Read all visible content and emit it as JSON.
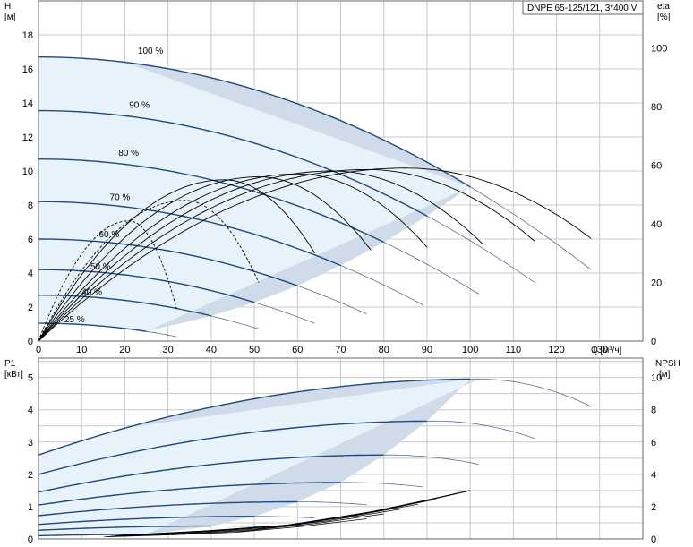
{
  "title": "DNPE 65-125/121, 3*400 V",
  "colors": {
    "curve": "#1f4a7e",
    "thin": "#5a6f8e",
    "shade": "#cfdbe8",
    "shade_light": "#e8f2fb",
    "grid": "#c8c8c8",
    "eta": "#000000"
  },
  "chart_data": [
    {
      "type": "line",
      "ylabel_left": [
        "H",
        "[м]"
      ],
      "ylabel_right": [
        "eta",
        "[%]"
      ],
      "xlabel": "Q [м³/ч]",
      "xlim": [
        0,
        140
      ],
      "ylim": [
        0,
        20
      ],
      "ylim_right": [
        0,
        116
      ],
      "x_ticks": [
        0,
        10,
        20,
        30,
        40,
        50,
        60,
        70,
        80,
        90,
        100,
        110,
        120,
        130
      ],
      "y_ticks": [
        0,
        2,
        4,
        6,
        8,
        10,
        12,
        14,
        16,
        18
      ],
      "y_ticks_right": [
        0,
        20,
        40,
        60,
        80,
        100
      ],
      "grid": true,
      "speed_labels": [
        {
          "label": "100 %",
          "x": 23,
          "y": 16.9
        },
        {
          "label": "90 %",
          "x": 21,
          "y": 13.7
        },
        {
          "label": "80 %",
          "x": 18.5,
          "y": 10.9
        },
        {
          "label": "70 %",
          "x": 16.5,
          "y": 8.3
        },
        {
          "label": "60 %",
          "x": 14,
          "y": 6.1
        },
        {
          "label": "50 %",
          "x": 12,
          "y": 4.2
        },
        {
          "label": "40 %",
          "x": 10,
          "y": 2.7
        },
        {
          "label": "25 %",
          "x": 6,
          "y": 1.1
        }
      ],
      "series": [
        {
          "speed": 100,
          "h0": 16.7,
          "qmax": 128,
          "hend": 4.2,
          "qbold": 100
        },
        {
          "speed": 90,
          "h0": 13.55,
          "qmax": 115.2,
          "hend": 3.4,
          "qbold": 90
        },
        {
          "speed": 80,
          "h0": 10.7,
          "qmax": 102.4,
          "hend": 2.7,
          "qbold": 80
        },
        {
          "speed": 70,
          "h0": 8.2,
          "qmax": 89.6,
          "hend": 2.05,
          "qbold": 70
        },
        {
          "speed": 60,
          "h0": 6.0,
          "qmax": 76.8,
          "hend": 1.5,
          "qbold": 60
        },
        {
          "speed": 50,
          "h0": 4.2,
          "qmax": 64,
          "hend": 1.05,
          "qbold": 50
        },
        {
          "speed": 40,
          "h0": 2.7,
          "qmax": 51.2,
          "hend": 0.7,
          "qbold": 40
        },
        {
          "speed": 25,
          "h0": 1.05,
          "qmax": 32,
          "hend": 0.26,
          "qbold": 25
        }
      ],
      "eta_curves": [
        {
          "qpeak": 85,
          "peak": 59,
          "qend": 128,
          "eend": 35
        },
        {
          "qpeak": 76,
          "peak": 58.5,
          "qend": 115,
          "eend": 34
        },
        {
          "qpeak": 68,
          "peak": 58,
          "qend": 103,
          "eend": 33
        },
        {
          "qpeak": 60,
          "peak": 57,
          "qend": 90,
          "eend": 32
        },
        {
          "qpeak": 51,
          "peak": 56,
          "qend": 77,
          "eend": 31
        },
        {
          "qpeak": 43,
          "peak": 55,
          "qend": 64,
          "eend": 30
        },
        {
          "qpeak": 34,
          "peak": 48,
          "qend": 51,
          "eend": 20
        },
        {
          "qpeak": 21,
          "peak": 41,
          "qend": 32,
          "eend": 11
        }
      ]
    },
    {
      "type": "line",
      "ylabel_left": [
        "P1",
        "[кВт]"
      ],
      "ylabel_right": [
        "NPSH",
        "[м]"
      ],
      "xlim": [
        0,
        140
      ],
      "ylim": [
        0,
        5.6
      ],
      "ylim_right": [
        0,
        11.2
      ],
      "y_ticks": [
        0,
        1,
        2,
        3,
        4,
        5
      ],
      "y_ticks_right": [
        0,
        2,
        4,
        6,
        8,
        10
      ],
      "grid": true,
      "series": [
        {
          "speed": 100,
          "p0": 2.6,
          "qmax": 128,
          "ppk": 4.95,
          "qpk": 102,
          "pend": 4.1
        },
        {
          "speed": 90,
          "p0": 2.0,
          "qmax": 115.2,
          "ppk": 3.65,
          "qpk": 92,
          "pend": 3.1
        },
        {
          "speed": 80,
          "p0": 1.45,
          "qmax": 102.4,
          "ppk": 2.6,
          "qpk": 81,
          "pend": 2.3
        },
        {
          "speed": 70,
          "p0": 1.05,
          "qmax": 89.6,
          "ppk": 1.75,
          "qpk": 71,
          "pend": 1.6
        },
        {
          "speed": 60,
          "p0": 0.72,
          "qmax": 76.8,
          "ppk": 1.15,
          "qpk": 60,
          "pend": 1.05
        },
        {
          "speed": 50,
          "p0": 0.45,
          "qmax": 64,
          "ppk": 0.7,
          "qpk": 50,
          "pend": 0.65
        },
        {
          "speed": 40,
          "p0": 0.27,
          "qmax": 51.2,
          "ppk": 0.4,
          "qpk": 40,
          "pend": 0.38
        },
        {
          "speed": 25,
          "p0": 0.1,
          "qmax": 32,
          "ppk": 0.14,
          "qpk": 25,
          "pend": 0.13
        }
      ],
      "npsh": {
        "x": [
          20,
          40,
          60,
          80,
          100
        ],
        "y": [
          0.2,
          0.5,
          0.9,
          1.8,
          3.0
        ]
      }
    }
  ]
}
